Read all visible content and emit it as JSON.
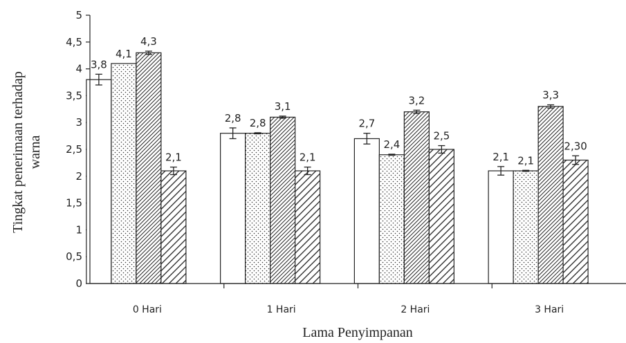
{
  "chart_data": {
    "type": "bar",
    "title": "",
    "xlabel": "Lama Penyimpanan",
    "ylabel_line1": "Tingkat  penerimaan  terhadap",
    "ylabel_line2": "warna",
    "ylim": [
      0,
      5
    ],
    "yticks": [
      {
        "value": 0,
        "label": "0"
      },
      {
        "value": 0.5,
        "label": "0,5"
      },
      {
        "value": 1,
        "label": "1"
      },
      {
        "value": 1.5,
        "label": "1,5"
      },
      {
        "value": 2,
        "label": "2"
      },
      {
        "value": 2.5,
        "label": "2,5"
      },
      {
        "value": 3,
        "label": "3"
      },
      {
        "value": 3.5,
        "label": "3,5"
      },
      {
        "value": 4,
        "label": "4"
      },
      {
        "value": 4.5,
        "label": "4,5"
      },
      {
        "value": 5,
        "label": "5"
      }
    ],
    "categories": [
      "0 Hari",
      "1 Hari",
      "2 Hari",
      "3 Hari"
    ],
    "grid": false,
    "legend": "none",
    "series": [
      {
        "pattern": "white",
        "values": [
          3.8,
          2.8,
          2.7,
          2.1
        ],
        "errors": [
          0.1,
          0.1,
          0.1,
          0.08
        ],
        "labels": [
          "3,8",
          "2,8",
          "2,7",
          "2,1"
        ]
      },
      {
        "pattern": "dots",
        "values": [
          4.1,
          2.8,
          2.4,
          2.1
        ],
        "errors": [
          0,
          0.01,
          0.01,
          0.01
        ],
        "labels": [
          "4,1",
          "2,8",
          "2,4",
          "2,1"
        ]
      },
      {
        "pattern": "dense-diagonal",
        "values": [
          4.3,
          3.1,
          3.2,
          3.3
        ],
        "errors": [
          0.03,
          0.02,
          0.03,
          0.03
        ],
        "labels": [
          "4,3",
          "3,1",
          "3,2",
          "3,3"
        ]
      },
      {
        "pattern": "wide-diagonal",
        "values": [
          2.1,
          2.1,
          2.5,
          2.3
        ],
        "errors": [
          0.07,
          0.07,
          0.07,
          0.08
        ],
        "labels": [
          "2,1",
          "2,1",
          "2,5",
          "2,30"
        ]
      }
    ]
  }
}
